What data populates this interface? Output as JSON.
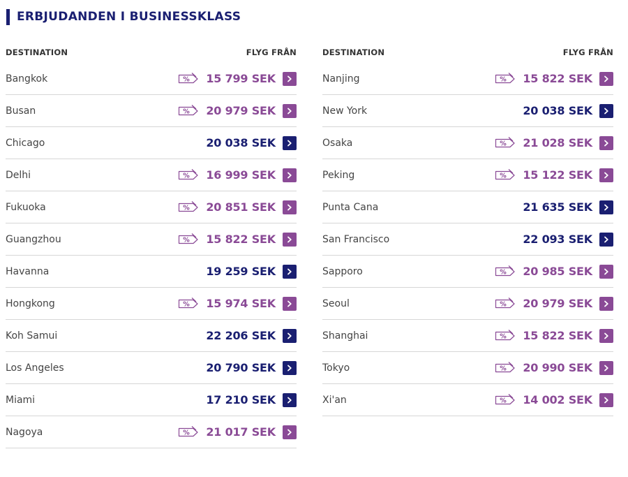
{
  "title": "ERBJUDANDEN I BUSINESSKLASS",
  "columns": {
    "destination_header": "DESTINATION",
    "price_header": "FLYG FRÅN"
  },
  "colors": {
    "offer": "#8a4a96",
    "normal": "#1a1f71"
  },
  "left": [
    {
      "destination": "Bangkok",
      "price": "15 799 SEK",
      "offer": true
    },
    {
      "destination": "Busan",
      "price": "20 979 SEK",
      "offer": true
    },
    {
      "destination": "Chicago",
      "price": "20 038 SEK",
      "offer": false
    },
    {
      "destination": "Delhi",
      "price": "16 999 SEK",
      "offer": true
    },
    {
      "destination": "Fukuoka",
      "price": "20 851 SEK",
      "offer": true
    },
    {
      "destination": "Guangzhou",
      "price": "15 822 SEK",
      "offer": true
    },
    {
      "destination": "Havanna",
      "price": "19 259 SEK",
      "offer": false
    },
    {
      "destination": "Hongkong",
      "price": "15 974 SEK",
      "offer": true
    },
    {
      "destination": "Koh Samui",
      "price": "22 206 SEK",
      "offer": false
    },
    {
      "destination": "Los Angeles",
      "price": "20 790 SEK",
      "offer": false
    },
    {
      "destination": "Miami",
      "price": "17 210 SEK",
      "offer": false
    },
    {
      "destination": "Nagoya",
      "price": "21 017 SEK",
      "offer": true
    }
  ],
  "right": [
    {
      "destination": "Nanjing",
      "price": "15 822 SEK",
      "offer": true
    },
    {
      "destination": "New York",
      "price": "20 038 SEK",
      "offer": false
    },
    {
      "destination": "Osaka",
      "price": "21 028 SEK",
      "offer": true
    },
    {
      "destination": "Peking",
      "price": "15 122 SEK",
      "offer": true
    },
    {
      "destination": "Punta Cana",
      "price": "21 635 SEK",
      "offer": false
    },
    {
      "destination": "San Francisco",
      "price": "22 093 SEK",
      "offer": false
    },
    {
      "destination": "Sapporo",
      "price": "20 985 SEK",
      "offer": true
    },
    {
      "destination": "Seoul",
      "price": "20 979 SEK",
      "offer": true
    },
    {
      "destination": "Shanghai",
      "price": "15 822 SEK",
      "offer": true
    },
    {
      "destination": "Tokyo",
      "price": "20 990 SEK",
      "offer": true
    },
    {
      "destination": "Xi'an",
      "price": "14 002 SEK",
      "offer": true
    }
  ]
}
